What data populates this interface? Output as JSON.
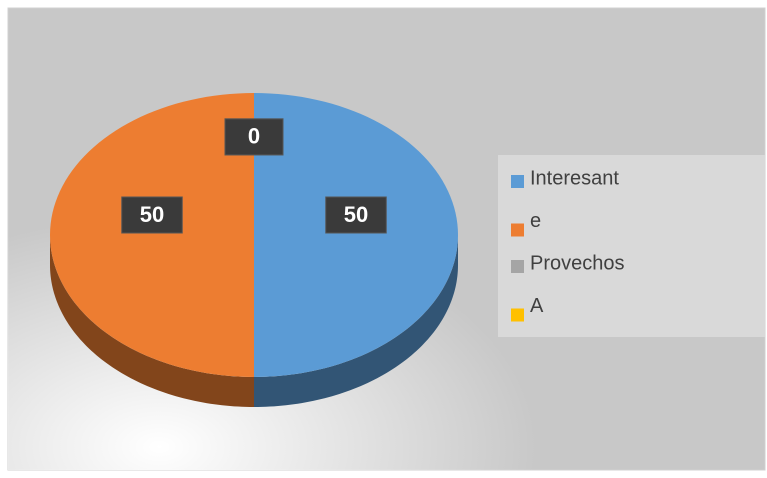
{
  "chart_data": {
    "type": "pie",
    "categories": [
      "Interesant",
      "e",
      "Provechos",
      "A"
    ],
    "values": [
      50,
      50,
      0,
      0
    ],
    "colors": [
      "#5b9bd5",
      "#ed7d31",
      "#a5a5a5",
      "#ffc000"
    ],
    "legend": "right"
  }
}
